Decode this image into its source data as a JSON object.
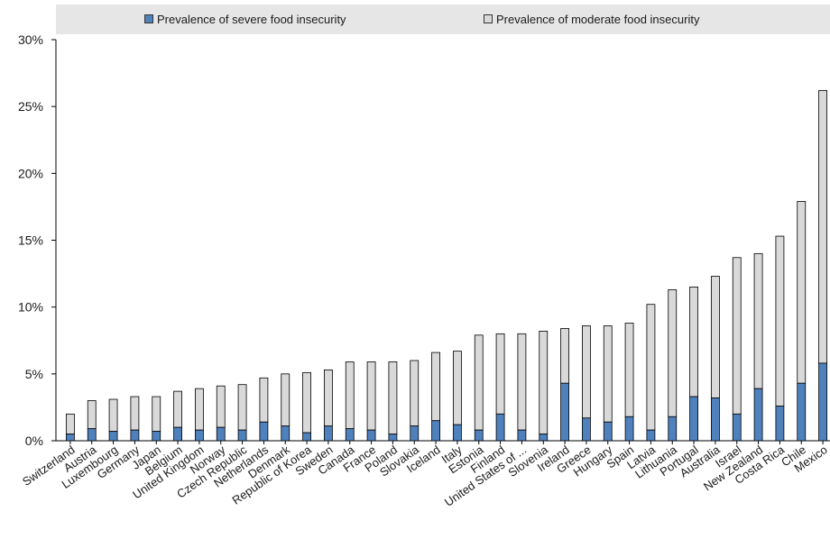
{
  "chart_data": {
    "type": "bar",
    "stacked": true,
    "categories": [
      "Switzerland",
      "Austria",
      "Luxembourg",
      "Germany",
      "Japan",
      "Belgium",
      "United Kingdom",
      "Norway",
      "Czech Republic",
      "Netherlands",
      "Denmark",
      "Republic of Korea",
      "Sweden",
      "Canada",
      "France",
      "Poland",
      "Slovakia",
      "Iceland",
      "Italy",
      "Estonia",
      "Finland",
      "United States of ...",
      "Slovenia",
      "Ireland",
      "Greece",
      "Hungary",
      "Spain",
      "Latvia",
      "Lithuania",
      "Portugal",
      "Australia",
      "Israel",
      "New Zealand",
      "Costa Rica",
      "Chile",
      "Mexico"
    ],
    "series": [
      {
        "name": "Prevalence of severe food insecurity",
        "color": "#4f81bd",
        "values": [
          0.5,
          0.9,
          0.7,
          0.8,
          0.7,
          1.0,
          0.8,
          1.0,
          0.8,
          1.4,
          1.1,
          0.6,
          1.1,
          0.9,
          0.8,
          0.5,
          1.1,
          1.5,
          1.2,
          0.8,
          2.0,
          0.8,
          0.5,
          4.3,
          1.7,
          1.4,
          1.8,
          0.8,
          1.8,
          3.3,
          3.2,
          2.0,
          3.9,
          2.6,
          4.3,
          5.8
        ]
      },
      {
        "name": "Prevalence of moderate food insecurity",
        "color": "#d9d9d9",
        "values": [
          1.5,
          2.1,
          2.4,
          2.5,
          2.6,
          2.7,
          3.1,
          3.1,
          3.4,
          3.3,
          3.9,
          4.5,
          4.2,
          5.0,
          5.1,
          5.4,
          4.9,
          5.1,
          5.5,
          7.1,
          6.0,
          7.2,
          7.7,
          4.1,
          6.9,
          7.2,
          7.0,
          9.4,
          9.5,
          8.2,
          9.1,
          11.7,
          10.1,
          12.7,
          13.6,
          20.4
        ]
      }
    ],
    "ylim": [
      0,
      30
    ],
    "yticks": [
      0,
      5,
      10,
      15,
      20,
      25,
      30
    ],
    "ytick_labels": [
      "0%",
      "5%",
      "10%",
      "15%",
      "20%",
      "25%",
      "30%"
    ],
    "legend_position": "top",
    "grid": false
  }
}
